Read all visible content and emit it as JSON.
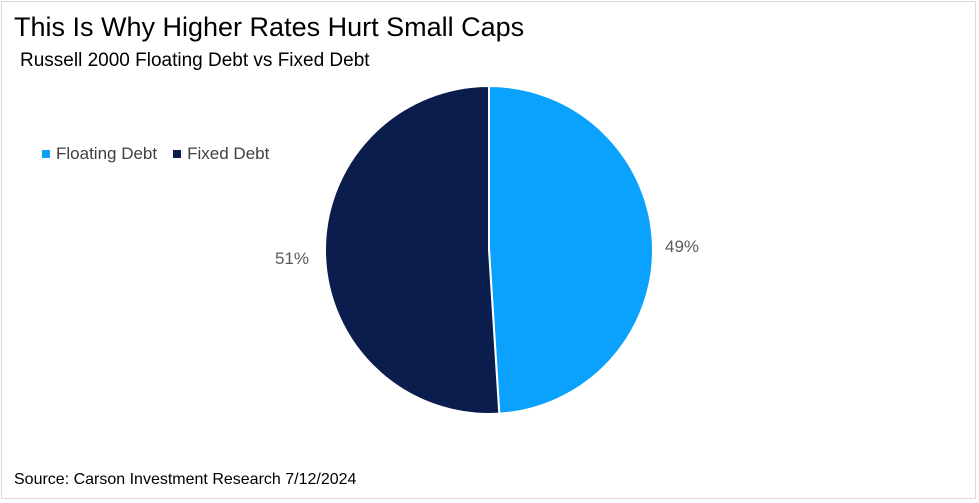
{
  "chart_data": {
    "type": "pie",
    "title": "This Is Why Higher Rates Hurt Small Caps",
    "subtitle": "Russell 2000 Floating Debt vs Fixed Debt",
    "slices": [
      {
        "name": "Floating Debt",
        "value": 49,
        "label": "49%",
        "color": "#0ba2fd"
      },
      {
        "name": "Fixed Debt",
        "value": 51,
        "label": "51%",
        "color": "#0b1d4c"
      }
    ],
    "legend": {
      "position": "top-left"
    },
    "source": "Source: Carson Investment Research 7/12/2024"
  }
}
